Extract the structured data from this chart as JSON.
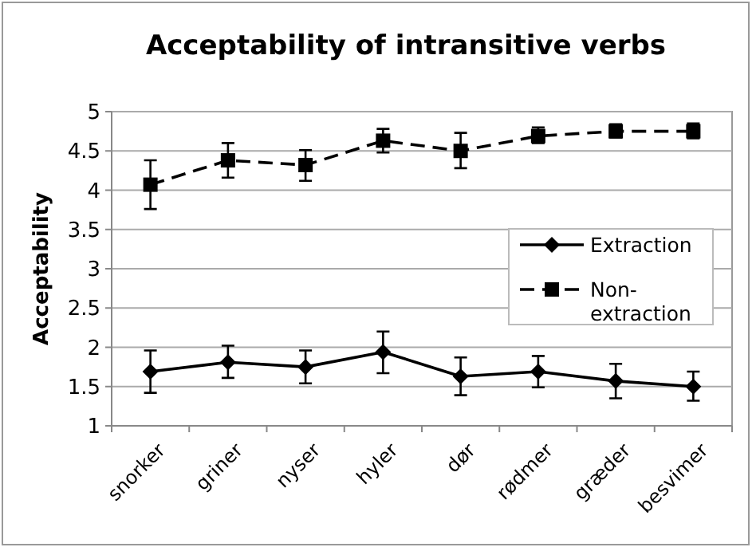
{
  "chart_data": {
    "type": "line",
    "title": "Acceptability of intransitive verbs",
    "ylabel": "Acceptability",
    "categories": [
      "snorker",
      "griner",
      "nyser",
      "hyler",
      "dør",
      "rødmer",
      "græder",
      "besvimer"
    ],
    "ylim": [
      1,
      5
    ],
    "yticks": [
      1,
      1.5,
      2,
      2.5,
      3,
      3.5,
      4,
      4.5,
      5
    ],
    "grid": "y",
    "legend": "right",
    "series": [
      {
        "name": "Extraction",
        "color": "#000000",
        "marker": "diamond",
        "line_style": "solid",
        "values": [
          1.69,
          1.81,
          1.75,
          1.94,
          1.63,
          1.69,
          1.57,
          1.5
        ],
        "errors": [
          [
            1.42,
            1.96
          ],
          [
            1.61,
            2.02
          ],
          [
            1.54,
            1.96
          ],
          [
            1.67,
            2.2
          ],
          [
            1.39,
            1.87
          ],
          [
            1.49,
            1.89
          ],
          [
            1.35,
            1.79
          ],
          [
            1.32,
            1.69
          ]
        ]
      },
      {
        "name": "Non-extraction",
        "color": "#000000",
        "marker": "square",
        "line_style": "dashed",
        "values": [
          4.07,
          4.38,
          4.32,
          4.63,
          4.5,
          4.69,
          4.75,
          4.75
        ],
        "errors": [
          [
            3.76,
            4.38
          ],
          [
            4.16,
            4.6
          ],
          [
            4.12,
            4.51
          ],
          [
            4.48,
            4.78
          ],
          [
            4.28,
            4.73
          ],
          [
            4.6,
            4.8
          ],
          [
            4.67,
            4.84
          ],
          [
            4.66,
            4.85
          ]
        ]
      }
    ]
  }
}
